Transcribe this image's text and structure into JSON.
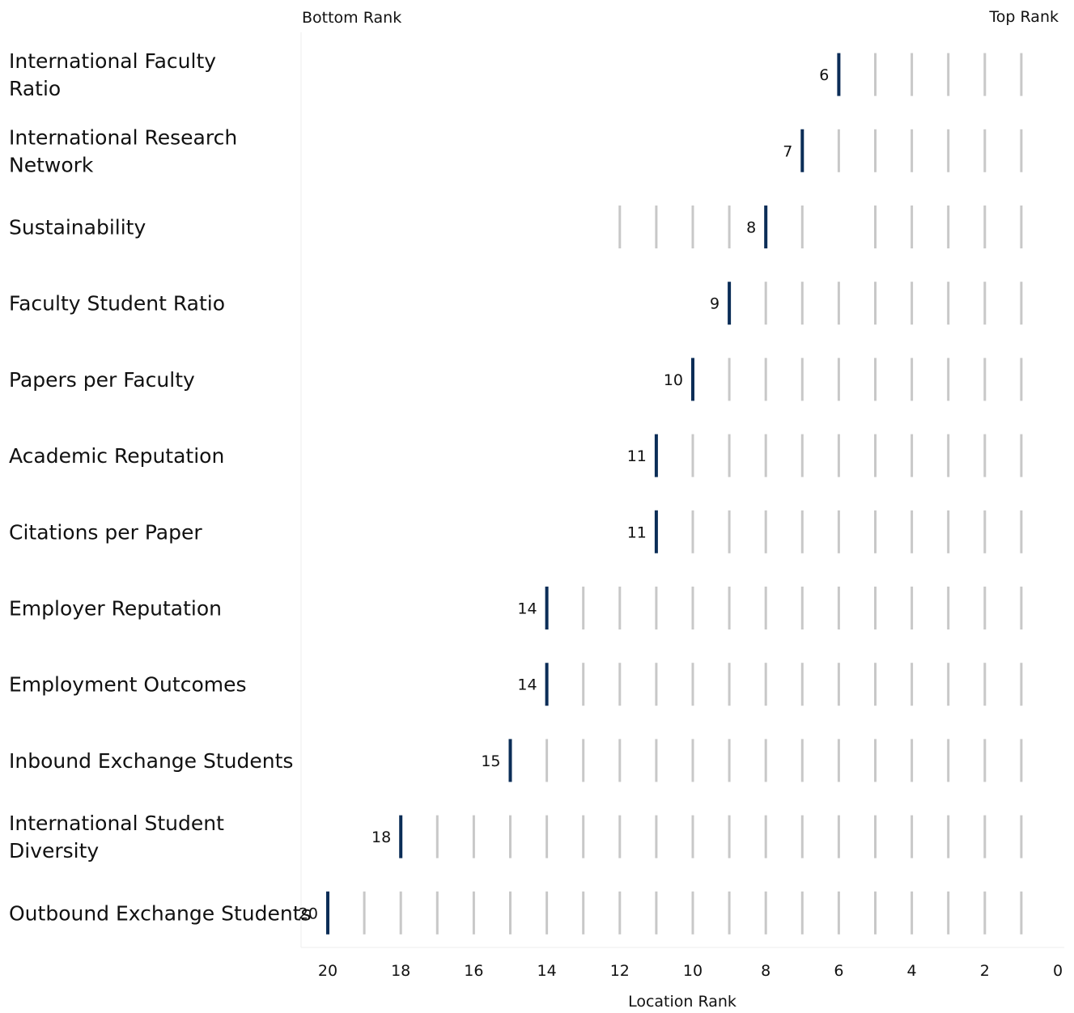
{
  "chart_data": {
    "type": "bar",
    "orientation": "horizontal",
    "top_left_label": "Bottom Rank",
    "top_right_label": "Top Rank",
    "xlabel": "Location Rank",
    "xlim": [
      21,
      0
    ],
    "x_ticks": [
      20,
      18,
      16,
      14,
      12,
      10,
      8,
      6,
      4,
      2,
      0
    ],
    "grid": false,
    "colors": {
      "rank_marker": "#0b2d57",
      "placeholder_marker": "#c8c8c8",
      "text": "#111111"
    },
    "categories": [
      {
        "label": "International Faculty Ratio",
        "rank": 6,
        "others": [
          5,
          4,
          3,
          2,
          1
        ]
      },
      {
        "label": "International Research Network",
        "rank": 7,
        "others": [
          6,
          5,
          4,
          3,
          2,
          1
        ]
      },
      {
        "label": "Sustainability",
        "rank": 8,
        "others": [
          12,
          11,
          10,
          9,
          7,
          5,
          4,
          3,
          2,
          1
        ]
      },
      {
        "label": "Faculty Student Ratio",
        "rank": 9,
        "others": [
          8,
          7,
          6,
          5,
          4,
          3,
          2,
          1
        ]
      },
      {
        "label": "Papers per Faculty",
        "rank": 10,
        "others": [
          9,
          8,
          7,
          6,
          5,
          4,
          3,
          2,
          1
        ]
      },
      {
        "label": "Academic Reputation",
        "rank": 11,
        "others": [
          10,
          9,
          8,
          7,
          6,
          5,
          4,
          3,
          2,
          1
        ]
      },
      {
        "label": "Citations per Paper",
        "rank": 11,
        "others": [
          10,
          9,
          8,
          7,
          6,
          5,
          4,
          3,
          2,
          1
        ]
      },
      {
        "label": "Employer Reputation",
        "rank": 14,
        "others": [
          13,
          12,
          11,
          10,
          9,
          8,
          7,
          6,
          5,
          4,
          3,
          2,
          1
        ]
      },
      {
        "label": "Employment Outcomes",
        "rank": 14,
        "others": [
          13,
          12,
          11,
          10,
          9,
          8,
          7,
          6,
          5,
          4,
          3,
          2,
          1
        ]
      },
      {
        "label": "Inbound Exchange Students",
        "rank": 15,
        "others": [
          14,
          13,
          12,
          11,
          10,
          9,
          8,
          7,
          6,
          5,
          4,
          3,
          2,
          1
        ]
      },
      {
        "label": "International Student Diversity",
        "rank": 18,
        "others": [
          17,
          16,
          15,
          14,
          13,
          12,
          11,
          10,
          9,
          8,
          7,
          6,
          5,
          4,
          3,
          2,
          1
        ]
      },
      {
        "label": "Outbound Exchange Students",
        "rank": 20,
        "others": [
          19,
          18,
          17,
          16,
          15,
          14,
          13,
          12,
          11,
          10,
          9,
          8,
          7,
          6,
          5,
          4,
          3,
          2,
          1
        ]
      }
    ]
  }
}
